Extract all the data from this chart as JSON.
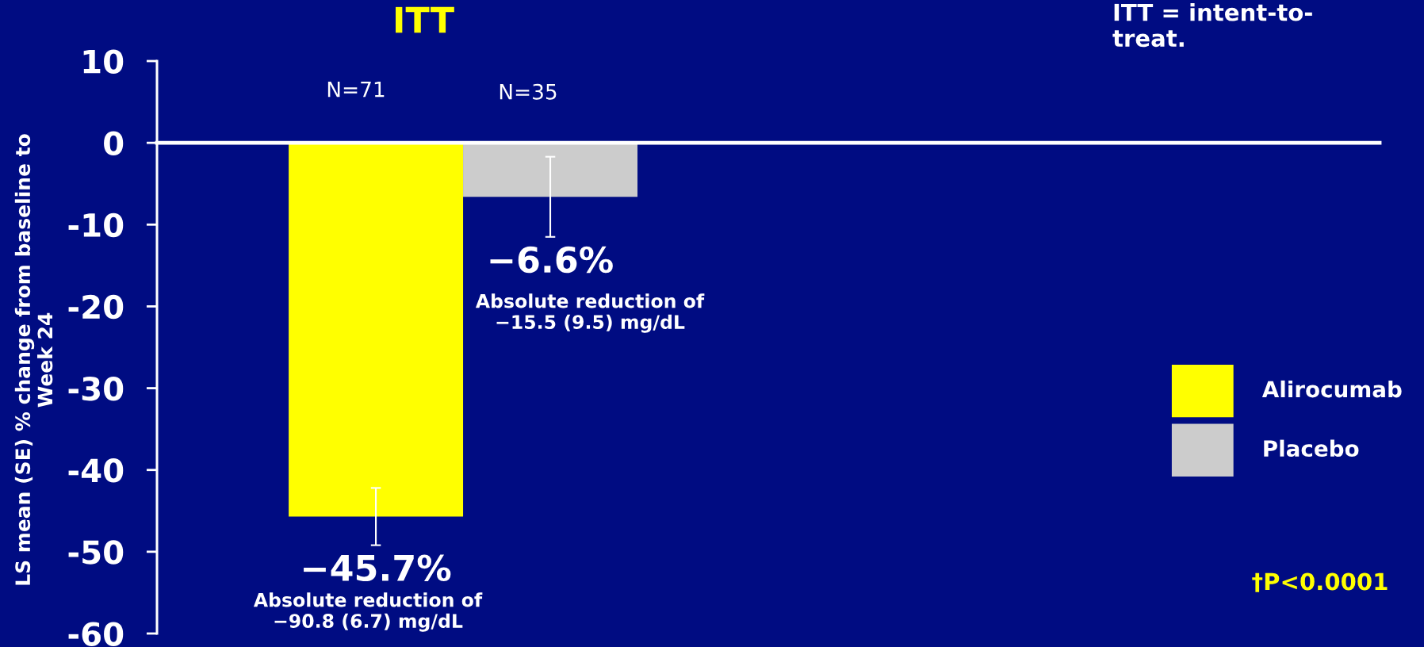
{
  "chart_data": {
    "type": "bar",
    "title": "ITT",
    "ylabel": "LS mean (SE) % change from baseline to\nWeek 24",
    "categories": [
      null
    ],
    "series": [
      {
        "name": "Alirocumab",
        "color": "#ffff00",
        "values": [
          -45.7
        ],
        "errors": [
          3.5
        ],
        "value_labels": [
          "−45.7%"
        ]
      },
      {
        "name": "Placebo",
        "color": "#cccccc",
        "values": [
          -6.6
        ],
        "errors": [
          4.9
        ],
        "value_labels": [
          "−6.6%"
        ]
      }
    ],
    "ylim": [
      -60,
      10
    ],
    "yticks": [
      -60,
      -50,
      -40,
      -30,
      -20,
      -10,
      0,
      10
    ],
    "legend": "right",
    "annotations": [
      "N=71",
      "N=35",
      "Absolute reduction of\n−90.8 (6.7) mg/dL",
      "Absolute reduction of\n−15.5 (9.5) mg/dL",
      "ITT = intent-to-\ntreat.",
      "†P<0.0001"
    ]
  }
}
